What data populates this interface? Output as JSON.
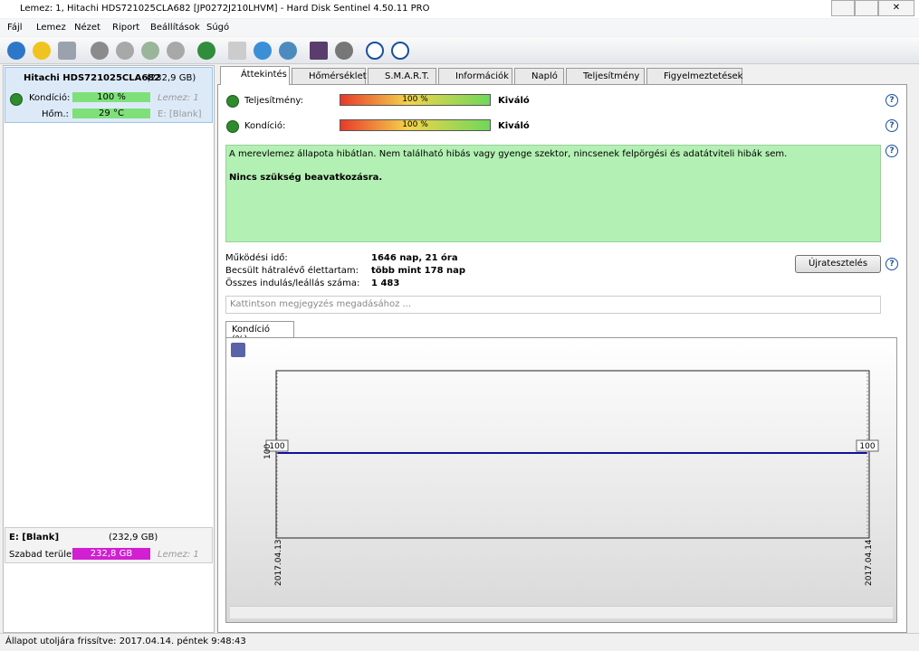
{
  "window": {
    "title": "Lemez: 1, Hitachi HDS721025CLA682 [JP0272J210LHVM]  -  Hard Disk Sentinel 4.50.11 PRO"
  },
  "menu": [
    "Fájl",
    "Lemez",
    "Nézet",
    "Riport",
    "Beállítások",
    "Súgó"
  ],
  "sidebar": {
    "disk": {
      "name": "Hitachi HDS721025CLA682",
      "size": "(232,9 GB)",
      "rows": [
        {
          "label": "Kondíció:",
          "value": "100 %",
          "extra": "Lemez: 1"
        },
        {
          "label": "Hőm.:",
          "value": "29 °C",
          "extra": "E: [Blank]"
        }
      ]
    },
    "volume": {
      "name": "E: [Blank]",
      "size": "(232,9 GB)",
      "label": "Szabad terület",
      "value": "232,8 GB",
      "extra": "Lemez: 1"
    }
  },
  "tabs": [
    "Áttekintés",
    "Hőmérséklet",
    "S.M.A.R.T.",
    "Információk",
    "Napló",
    "Teljesítmény",
    "Figyelmeztetések"
  ],
  "overview": {
    "meters": [
      {
        "label": "Teljesítmény:",
        "value": "100 %",
        "rating": "Kiváló"
      },
      {
        "label": "Kondíció:",
        "value": "100 %",
        "rating": "Kiváló"
      }
    ],
    "message": "A merevlemez állapota hibátlan. Nem található hibás vagy gyenge szektor, nincsenek felpörgési és adatátviteli hibák sem.",
    "advice": "Nincs szükség beavatkozásra.",
    "stats": [
      {
        "label": "Működési idő:",
        "value": "1646 nap, 21 óra"
      },
      {
        "label": "Becsült hátralévő élettartam:",
        "value": "több mint 178 nap"
      },
      {
        "label": "Összes indulás/leállás száma:",
        "value": "1 483"
      }
    ],
    "button": "Újratesztelés",
    "note_placeholder": "Kattintson megjegyzés megadásához ..."
  },
  "chart": {
    "tab": "Kondíció  (%)",
    "x": [
      "2017.04.13",
      "2017.04.14"
    ],
    "values": [
      100,
      100
    ],
    "ylabel": "100"
  },
  "status": "Állapot utoljára frissítve: 2017.04.14. péntek 9:48:43"
}
